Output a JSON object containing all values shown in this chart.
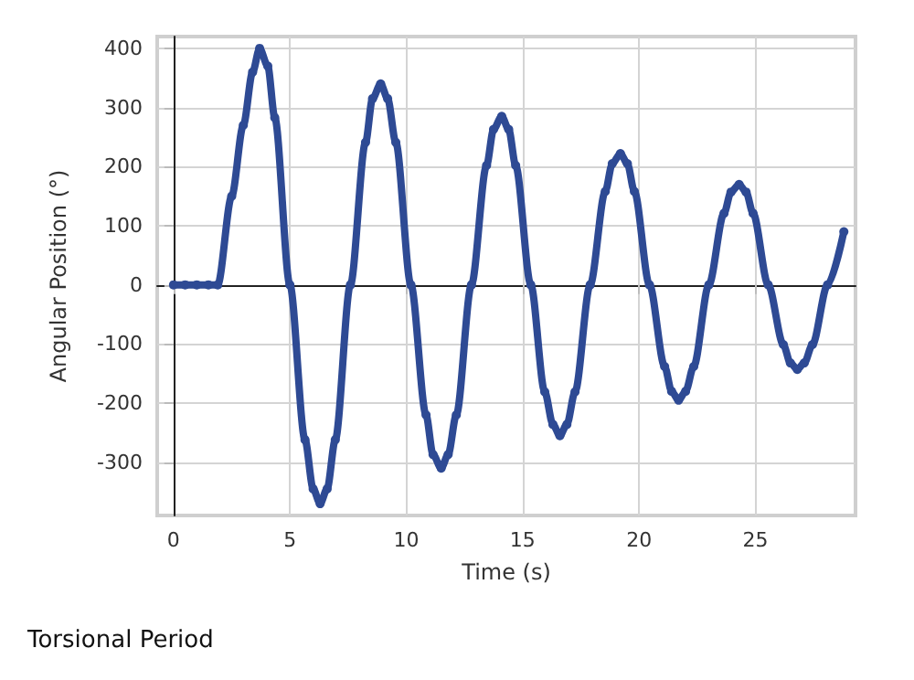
{
  "chart_data": {
    "type": "line",
    "title": "Torsional Period",
    "xlabel": "Time (s)",
    "ylabel": "Angular Position (°)",
    "xlim": [
      -0.7,
      29.3
    ],
    "ylim": [
      -390,
      420
    ],
    "xticks": [
      0,
      5,
      10,
      15,
      20,
      25
    ],
    "yticks": [
      -300,
      -200,
      -100,
      0,
      100,
      200,
      300,
      400
    ],
    "grid": true,
    "marker": "circle",
    "line_style": "solid",
    "series": [
      {
        "color": "#2e4a94",
        "x": [
          0,
          0.5,
          1,
          1.5,
          1.9,
          2.5,
          3.0,
          3.4,
          3.7,
          4.05,
          4.35,
          5.0,
          5.65,
          6.0,
          6.3,
          6.6,
          6.95,
          7.6,
          8.25,
          8.55,
          8.9,
          9.2,
          9.55,
          10.2,
          10.85,
          11.15,
          11.5,
          11.8,
          12.15,
          12.8,
          13.45,
          13.75,
          14.1,
          14.4,
          14.7,
          15.35,
          15.95,
          16.3,
          16.6,
          16.9,
          17.25,
          17.9,
          18.55,
          18.85,
          19.2,
          19.5,
          19.8,
          20.45,
          21.1,
          21.4,
          21.7,
          22.0,
          22.35,
          23.0,
          23.65,
          23.95,
          24.3,
          24.6,
          24.9,
          25.55,
          26.2,
          26.5,
          26.8,
          27.1,
          27.45,
          28.1,
          28.8
        ],
        "values": [
          0,
          0,
          0,
          0,
          0,
          150,
          270,
          360,
          400,
          370,
          283,
          0,
          -262,
          -345,
          -370,
          -345,
          -262,
          0,
          241,
          315,
          340,
          315,
          241,
          0,
          -220,
          -287,
          -310,
          -287,
          -220,
          0,
          202,
          263,
          285,
          263,
          202,
          0,
          -181,
          -236,
          -255,
          -236,
          -181,
          0,
          158,
          205,
          222,
          205,
          158,
          0,
          -138,
          -180,
          -195,
          -180,
          -138,
          0,
          121,
          157,
          170,
          157,
          121,
          0,
          -101,
          -132,
          -143,
          -132,
          -101,
          0,
          90
        ]
      }
    ]
  }
}
